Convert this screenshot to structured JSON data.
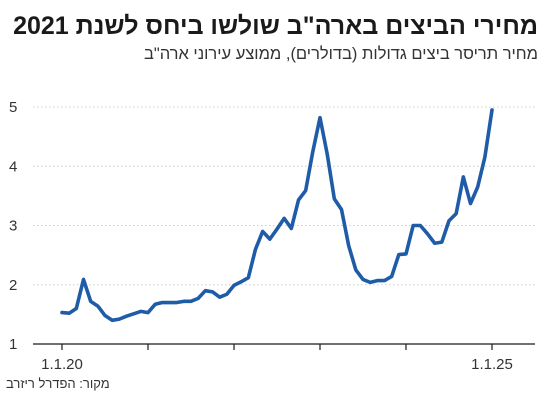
{
  "header": {
    "title": "מחירי הביצים בארה\"ב שולשו ביחס לשנת 2021",
    "subtitle": "מחיר תריסר ביצים גדולות (בדולרים), ממוצע עירוני ארה\"ב"
  },
  "footer": {
    "source": "מקור: הפדרל ריזרב"
  },
  "colors": {
    "line": "#1f5ca8",
    "grid": "#cccccc",
    "axis": "#1a1a1a"
  },
  "chart_data": {
    "type": "line",
    "title": "מחירי הביצים בארה\"ב שולשו ביחס לשנת 2021",
    "subtitle": "מחיר תריסר ביצים גדולות (בדולרים), ממוצע עירוני ארה\"ב",
    "xlabel": "",
    "ylabel": "",
    "ylim": [
      1,
      5
    ],
    "yticks": [
      "1",
      "2",
      "3",
      "4",
      "5"
    ],
    "xticks": [
      {
        "x": "2020-01",
        "label": "1.1.20"
      },
      {
        "x": "2025-01",
        "label": "1.1.25"
      }
    ],
    "x_minor_ticks": [
      "2021-01",
      "2022-01",
      "2023-01",
      "2024-01"
    ],
    "grid": "horizontal",
    "legend": "none",
    "series": [
      {
        "x": [
          "2020-01",
          "2020-02",
          "2020-03",
          "2020-04",
          "2020-05",
          "2020-06",
          "2020-07",
          "2020-08",
          "2020-09",
          "2020-10",
          "2020-11",
          "2020-12",
          "2021-01",
          "2021-02",
          "2021-03",
          "2021-04",
          "2021-05",
          "2021-06",
          "2021-07",
          "2021-08",
          "2021-09",
          "2021-10",
          "2021-11",
          "2021-12",
          "2022-01",
          "2022-02",
          "2022-03",
          "2022-04",
          "2022-05",
          "2022-06",
          "2022-07",
          "2022-08",
          "2022-09",
          "2022-10",
          "2022-11",
          "2022-12",
          "2023-01",
          "2023-02",
          "2023-03",
          "2023-04",
          "2023-05",
          "2023-06",
          "2023-07",
          "2023-08",
          "2023-09",
          "2023-10",
          "2023-11",
          "2023-12",
          "2024-01",
          "2024-02",
          "2024-03",
          "2024-04",
          "2024-05",
          "2024-06",
          "2024-07",
          "2024-08",
          "2024-09",
          "2024-10",
          "2024-11",
          "2024-12",
          "2025-01"
        ],
        "values": [
          1.53,
          1.52,
          1.6,
          2.09,
          1.72,
          1.64,
          1.48,
          1.4,
          1.42,
          1.47,
          1.51,
          1.55,
          1.53,
          1.67,
          1.7,
          1.7,
          1.7,
          1.72,
          1.72,
          1.77,
          1.9,
          1.88,
          1.79,
          1.84,
          1.99,
          2.05,
          2.12,
          2.6,
          2.9,
          2.77,
          2.94,
          3.12,
          2.95,
          3.43,
          3.59,
          4.25,
          4.82,
          4.21,
          3.45,
          3.27,
          2.66,
          2.25,
          2.09,
          2.04,
          2.07,
          2.07,
          2.14,
          2.51,
          2.52,
          3.0,
          3.0,
          2.86,
          2.7,
          2.72,
          3.08,
          3.2,
          3.82,
          3.37,
          3.65,
          4.15,
          4.95
        ]
      }
    ]
  }
}
